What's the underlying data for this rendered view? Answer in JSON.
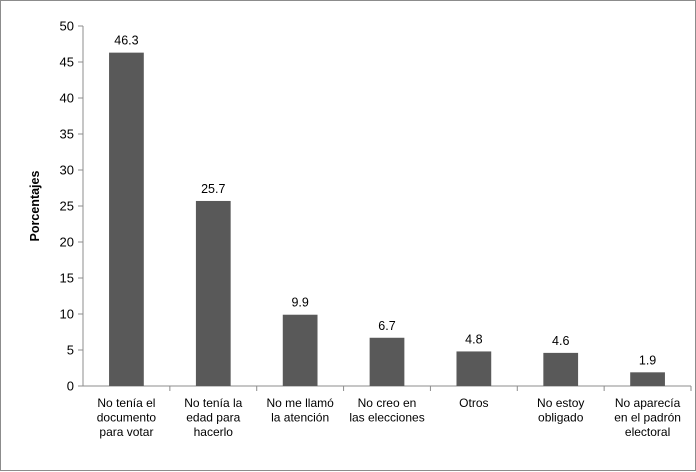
{
  "chart_data": {
    "type": "bar",
    "title": "",
    "xlabel": "",
    "ylabel": "Porcentajes",
    "ylim": [
      0,
      50
    ],
    "yticks": [
      0,
      5,
      10,
      15,
      20,
      25,
      30,
      35,
      40,
      45,
      50
    ],
    "grid": false,
    "legend": "none",
    "bar_color": "#595959",
    "categories": [
      [
        "No tenía el",
        "documento",
        "para votar"
      ],
      [
        "No tenía la",
        "edad para",
        "hacerlo"
      ],
      [
        "No me llamó",
        "la atención"
      ],
      [
        "No creo en",
        "las elecciones"
      ],
      [
        "Otros"
      ],
      [
        "No estoy",
        "obligado"
      ],
      [
        "No aparecía",
        "en el padrón",
        "electoral"
      ]
    ],
    "values": [
      46.3,
      25.7,
      9.9,
      6.7,
      4.8,
      4.6,
      1.9
    ],
    "data_labels": [
      "46.3",
      "25.7",
      "9.9",
      "6.7",
      "4.8",
      "4.6",
      "1.9"
    ]
  }
}
